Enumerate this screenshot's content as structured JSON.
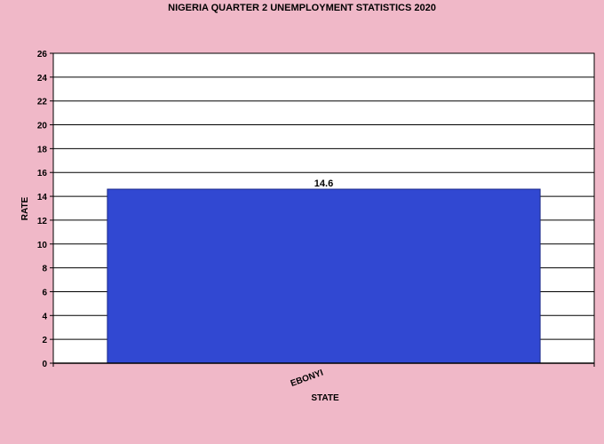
{
  "chart_data": {
    "type": "bar",
    "title": "NIGERIA QUARTER 2 UNEMPLOYMENT STATISTICS 2020",
    "xlabel": "STATE",
    "ylabel": "RATE",
    "categories": [
      "EBONYI"
    ],
    "values": [
      14.6
    ],
    "data_labels": [
      "14.6"
    ],
    "ylim": [
      0,
      26
    ],
    "yticks": [
      0,
      2,
      4,
      6,
      8,
      10,
      12,
      14,
      16,
      18,
      20,
      22,
      24,
      26
    ],
    "grid": true,
    "legend": "none",
    "bar_color": "#3148d2",
    "plot_background": "#ffffff",
    "page_background": "#f0b8c8"
  }
}
